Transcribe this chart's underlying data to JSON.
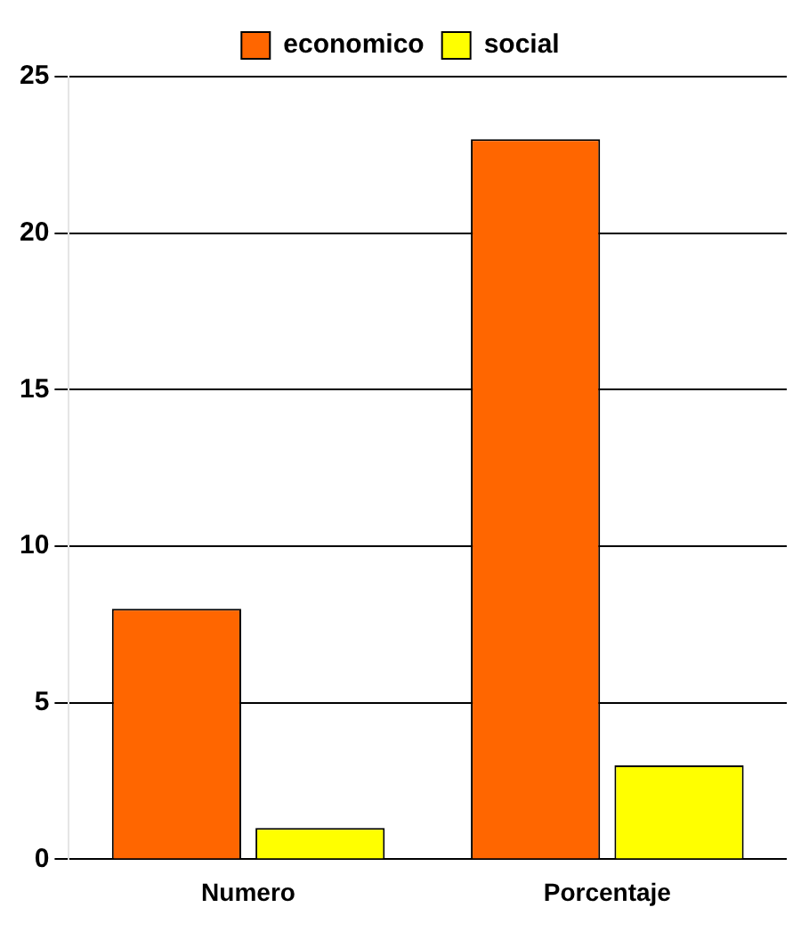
{
  "chart_data": {
    "type": "bar",
    "categories": [
      "Numero",
      "Porcentaje"
    ],
    "series": [
      {
        "name": "economico",
        "color": "#ff6600",
        "values": [
          8,
          23
        ]
      },
      {
        "name": "social",
        "color": "#ffff00",
        "values": [
          1,
          3
        ]
      }
    ],
    "ylim": [
      0,
      25
    ],
    "yticks": [
      0,
      5,
      10,
      15,
      20,
      25
    ],
    "grid": "y",
    "legend": "top"
  }
}
